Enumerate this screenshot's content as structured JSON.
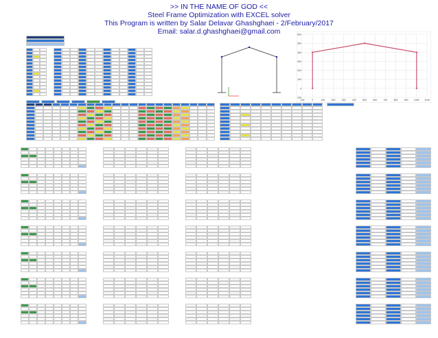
{
  "header": {
    "line1": ">> IN THE NAME OF GOD <<",
    "line2": "Steel Frame Optimization with EXCEL solver",
    "line3": "This Program is written by Salar Delavar Ghashghaei - 2/February/2017",
    "line4": "Email: salar.d.ghashghaei@gmail.com"
  },
  "colors": {
    "title": "#1a1aa8",
    "header_blue": "#2f75d6",
    "dark_blue": "#1f3f7a",
    "green": "#3a9a4a",
    "yellow": "#e7e24a",
    "red": "#e36b5c",
    "frame_line": "#c8546e"
  },
  "chart_data": {
    "type": "line",
    "title": "",
    "xlabel": "",
    "ylabel": "",
    "xlim": [
      -100,
      1100
    ],
    "ylim": [
      -100,
      600
    ],
    "xticks": [
      -100,
      0,
      100,
      200,
      300,
      400,
      500,
      600,
      700,
      800,
      900,
      1000,
      1100
    ],
    "yticks": [
      -100,
      0,
      100,
      200,
      300,
      400,
      500,
      600
    ],
    "series": [
      {
        "x": [
          0,
          0,
          500,
          1000,
          1000
        ],
        "y": [
          0,
          400,
          500,
          400,
          0
        ]
      }
    ]
  }
}
